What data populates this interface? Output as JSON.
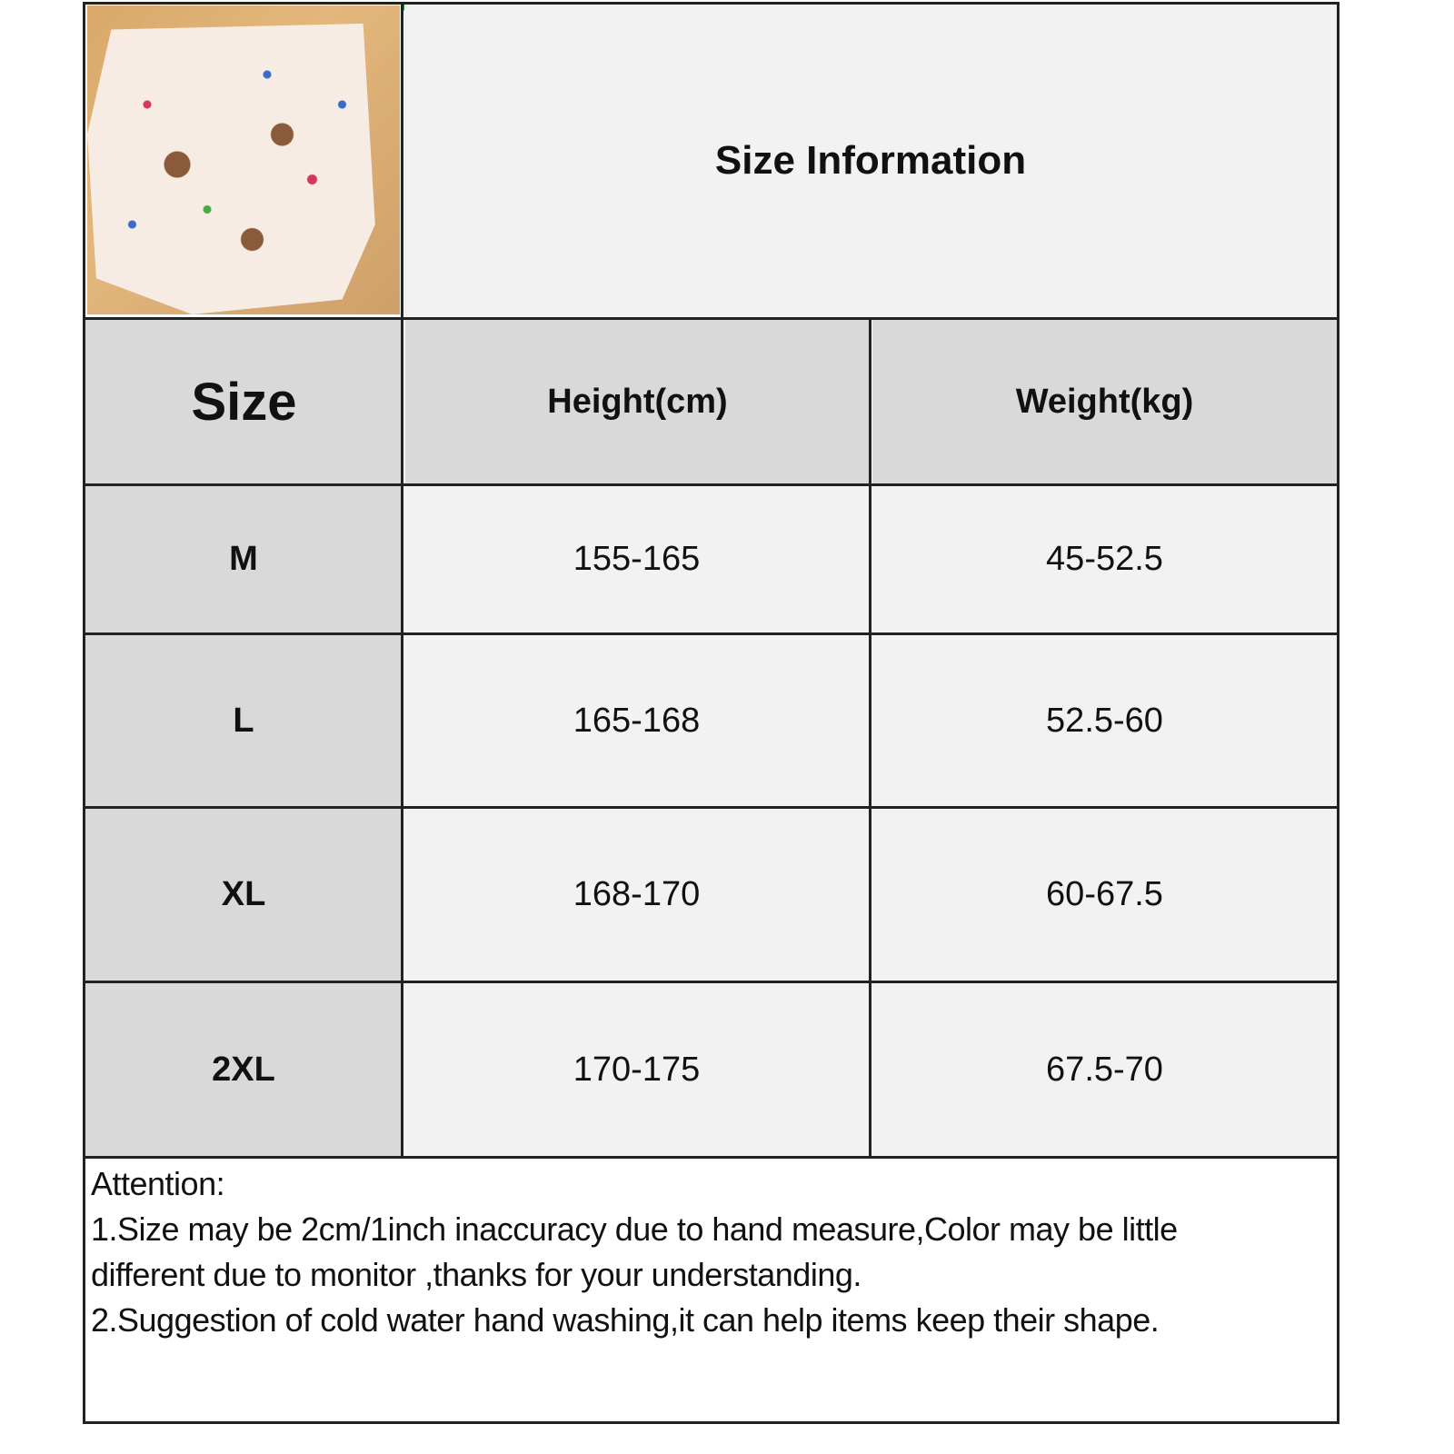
{
  "title": "Size Information",
  "product_image": {
    "description_icon": "product-photo-pajama-pants"
  },
  "table": {
    "headers": [
      "Size",
      "Height(cm)",
      "Weight(kg)"
    ],
    "rows": [
      {
        "size": "M",
        "height": "155-165",
        "weight": "45-52.5"
      },
      {
        "size": "L",
        "height": "165-168",
        "weight": "52.5-60"
      },
      {
        "size": "XL",
        "height": "168-170",
        "weight": "60-67.5"
      },
      {
        "size": "2XL",
        "height": "170-175",
        "weight": "67.5-70"
      }
    ]
  },
  "attention": {
    "heading": "Attention:",
    "line1": "1.Size may be 2cm/1inch inaccuracy due to hand measure,Color may be little",
    "line2": "different due to monitor ,thanks for your understanding.",
    "line3": "2.Suggestion of cold water hand washing,it can help items keep their shape."
  },
  "colors": {
    "header_bg": "#d9d9d9",
    "cell_bg": "#f2f2f2",
    "border": "#222222"
  }
}
